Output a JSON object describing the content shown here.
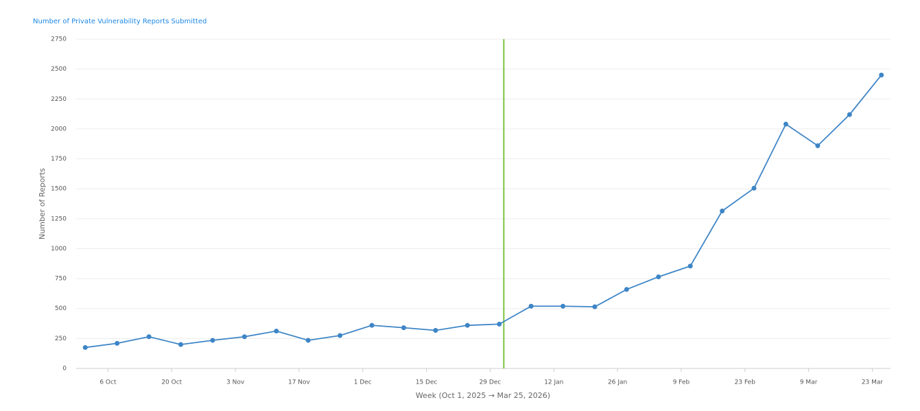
{
  "chart_data": {
    "type": "line",
    "title": "Number of Private Vulnerability Reports Submitted",
    "x_label": "Week (Oct 1, 2025 → Mar 25, 2026)",
    "y_label": "Number of Reports",
    "x": [
      "2025-10-01",
      "2025-10-08",
      "2025-10-15",
      "2025-10-22",
      "2025-10-29",
      "2025-11-05",
      "2025-11-12",
      "2025-11-19",
      "2025-11-26",
      "2025-12-03",
      "2025-12-10",
      "2025-12-17",
      "2025-12-24",
      "2025-12-31",
      "2026-01-07",
      "2026-01-14",
      "2026-01-21",
      "2026-01-28",
      "2026-02-04",
      "2026-02-11",
      "2026-02-18",
      "2026-02-25",
      "2026-03-04",
      "2026-03-11",
      "2026-03-18",
      "2026-03-25"
    ],
    "values": [
      175,
      210,
      265,
      200,
      235,
      265,
      312,
      235,
      275,
      360,
      340,
      318,
      360,
      370,
      520,
      520,
      515,
      660,
      765,
      855,
      1315,
      1505,
      2040,
      1860,
      2120,
      2450
    ],
    "color": "#3d85c6",
    "xlim": [
      "2025-09-29",
      "2026-03-27"
    ],
    "xticks": [
      {
        "value": "2025-10-06",
        "label": "6 Oct"
      },
      {
        "value": "2025-10-20",
        "label": "20 Oct"
      },
      {
        "value": "2025-11-03",
        "label": "3 Nov"
      },
      {
        "value": "2025-11-17",
        "label": "17 Nov"
      },
      {
        "value": "2025-12-01",
        "label": "1 Dec"
      },
      {
        "value": "2025-12-15",
        "label": "15 Dec"
      },
      {
        "value": "2025-12-29",
        "label": "29 Dec"
      },
      {
        "value": "2026-01-12",
        "label": "12 Jan"
      },
      {
        "value": "2026-01-26",
        "label": "26 Jan"
      },
      {
        "value": "2026-02-09",
        "label": "9 Feb"
      },
      {
        "value": "2026-02-23",
        "label": "23 Feb"
      },
      {
        "value": "2026-03-09",
        "label": "9 Mar"
      },
      {
        "value": "2026-03-23",
        "label": "23 Mar"
      }
    ],
    "ylim": [
      0,
      2750
    ],
    "yticks": [
      0,
      250,
      500,
      750,
      1000,
      1250,
      1500,
      1750,
      2000,
      2250,
      2500,
      2750
    ],
    "grid": true,
    "markers": [
      {
        "x": "2026-01-01",
        "color": "#7cc242"
      }
    ]
  }
}
